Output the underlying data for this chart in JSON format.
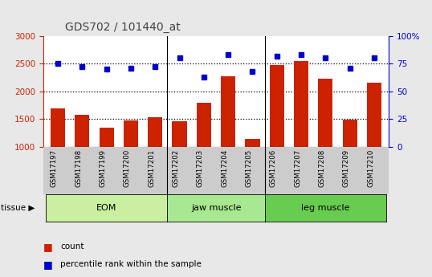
{
  "title": "GDS702 / 101440_at",
  "samples": [
    "GSM17197",
    "GSM17198",
    "GSM17199",
    "GSM17200",
    "GSM17201",
    "GSM17202",
    "GSM17203",
    "GSM17204",
    "GSM17205",
    "GSM17206",
    "GSM17207",
    "GSM17208",
    "GSM17209",
    "GSM17210"
  ],
  "counts": [
    1700,
    1580,
    1350,
    1470,
    1540,
    1460,
    1790,
    2270,
    1140,
    2470,
    2550,
    2230,
    1490,
    2160
  ],
  "percentiles": [
    75,
    72,
    70,
    71,
    72,
    80,
    63,
    83,
    68,
    82,
    83,
    80,
    71,
    80
  ],
  "groups": [
    {
      "label": "EOM",
      "start": 0,
      "end": 4,
      "color": "#c8f0a0"
    },
    {
      "label": "jaw muscle",
      "start": 5,
      "end": 8,
      "color": "#a8e890"
    },
    {
      "label": "leg muscle",
      "start": 9,
      "end": 13,
      "color": "#68cc50"
    }
  ],
  "ylim_left": [
    1000,
    3000
  ],
  "ylim_right": [
    0,
    100
  ],
  "yticks_left": [
    1000,
    1500,
    2000,
    2500,
    3000
  ],
  "yticks_right": [
    0,
    25,
    50,
    75,
    100
  ],
  "bar_color": "#cc2200",
  "dot_color": "#0000cc",
  "grid_color": "#000000",
  "title_color": "#444444",
  "left_axis_color": "#cc2200",
  "right_axis_color": "#0000cc",
  "legend_count": "count",
  "legend_percentile": "percentile rank within the sample",
  "ticklabel_bg": "#cccccc",
  "plot_bg": "#ffffff",
  "fig_bg": "#e8e8e8"
}
